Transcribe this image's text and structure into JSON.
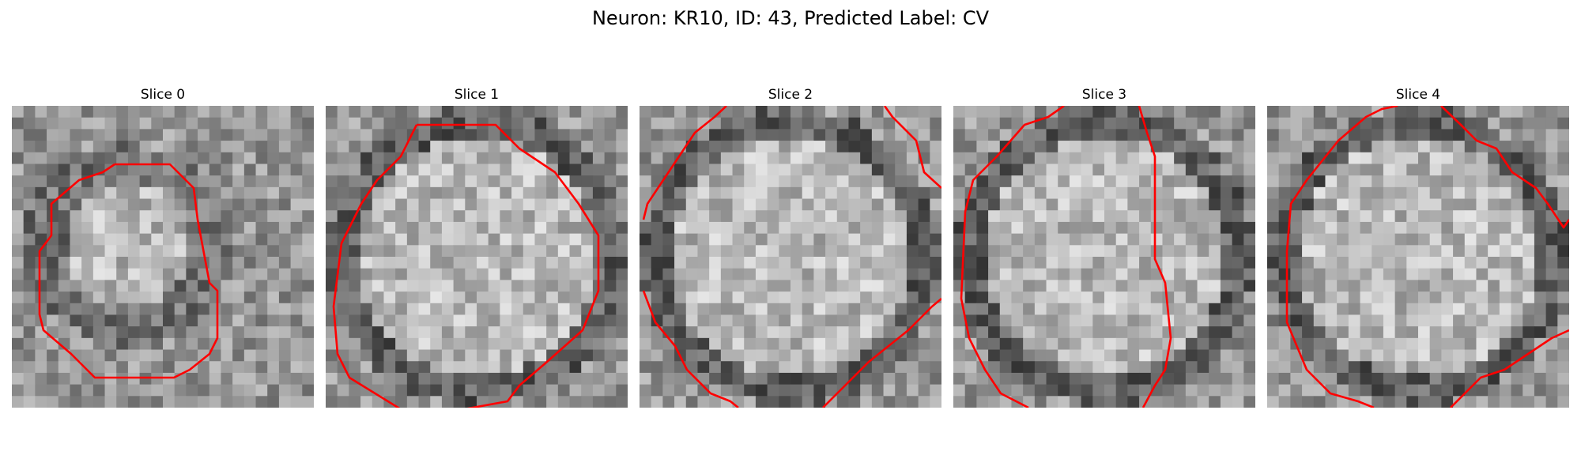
{
  "figure": {
    "title": "Neuron: KR10, ID: 43, Predicted Label: CV"
  },
  "slices": [
    {
      "title": "Slice 0"
    },
    {
      "title": "Slice 1"
    },
    {
      "title": "Slice 2"
    },
    {
      "title": "Slice 3"
    },
    {
      "title": "Slice 4"
    }
  ],
  "colors": {
    "contour": "#ff0000",
    "background": "#ffffff"
  }
}
